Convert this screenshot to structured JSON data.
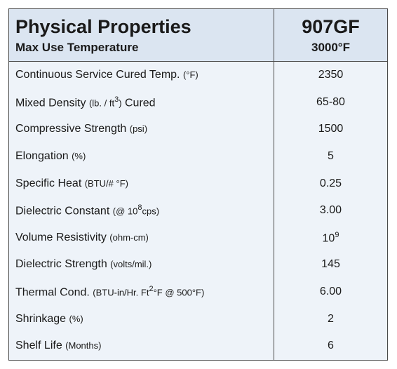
{
  "header": {
    "title": "Physical Properties",
    "subtitle": "Max Use Temperature",
    "product": "907GF",
    "max_temp": "3000°F"
  },
  "rows": [
    {
      "name": "Continuous Service Cured Temp.",
      "unit": "(°F)",
      "value": 2350
    },
    {
      "name": "Mixed Density",
      "unit": [
        "(lb. / ft",
        "3",
        ")"
      ],
      "suffix": "Cured",
      "value": "65-80"
    },
    {
      "name": "Compressive Strength",
      "unit": "(psi)",
      "value": 1500
    },
    {
      "name": "Elongation",
      "unit": "(%)",
      "value": 5
    },
    {
      "name": "Specific Heat",
      "unit": "(BTU/# °F)",
      "value": 0.25
    },
    {
      "name": "Dielectric Constant",
      "unit": [
        "(@ 10",
        "8",
        "cps)"
      ],
      "value": "3.00"
    },
    {
      "name": "Volume Resistivity",
      "unit": "(ohm-cm)",
      "value": [
        "10",
        "9"
      ]
    },
    {
      "name": "Dielectric Strength",
      "unit": "(volts/mil.)",
      "value": 145
    },
    {
      "name": "Thermal Cond.",
      "unit": [
        "(BTU-in/Hr. Ft",
        "2",
        "°F @ 500°F)"
      ],
      "value": "6.00"
    },
    {
      "name": "Shrinkage",
      "unit": "(%)",
      "value": 2
    },
    {
      "name": "Shelf Life",
      "unit": "(Months)",
      "value": 6
    }
  ]
}
